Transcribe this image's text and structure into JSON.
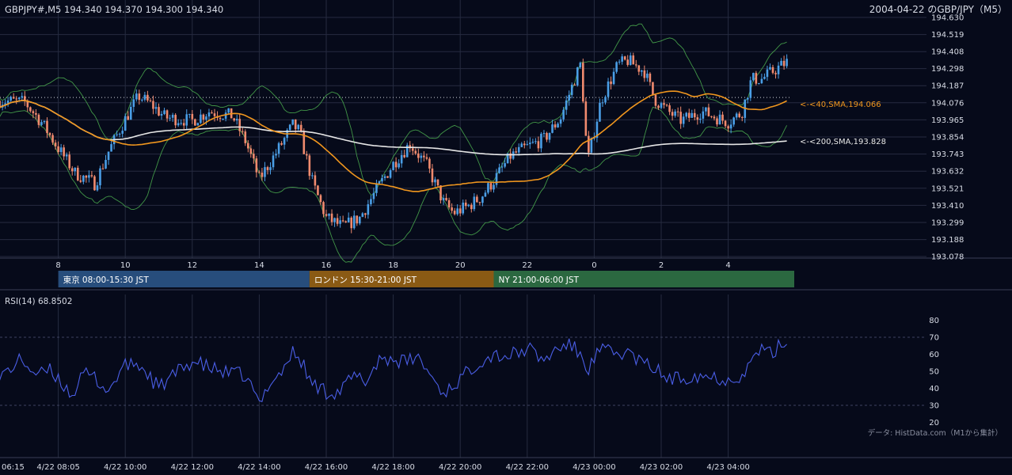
{
  "header": {
    "symbol_line": "GBPJPY#,M5 194.340 194.370 194.300 194.340",
    "title": "2004-04-22 のGBP/JPY（M5）"
  },
  "colors": {
    "background": "#060a1a",
    "grid": "#262b40",
    "candle_up": "#4a9ee6",
    "candle_down": "#f08a6e",
    "sma40": "#f0961e",
    "sma200": "#e6e6e6",
    "bollinger": "#4caf50",
    "rsi": "#4a5ee6",
    "session_tokyo": "#274d7c",
    "session_london": "#8a5a14",
    "session_ny": "#2b6840"
  },
  "sessions": [
    {
      "label": "東京 08:00-15:30 JST",
      "color": "#274d7c"
    },
    {
      "label": "ロンドン 15:30-21:00 JST",
      "color": "#8a5a14"
    },
    {
      "label": "NY 21:00-06:00 JST",
      "color": "#2b6840"
    }
  ],
  "rsi_label": "RSI(14) 68.8502",
  "footer_note": "データ: HistData.com（M1から集計）",
  "chart_data": [
    {
      "type": "candlestick",
      "title": "2004-04-22 のGBP/JPY（M5）",
      "ylim": [
        193.078,
        194.63
      ],
      "y_ticks": [
        "194.630",
        "194.519",
        "194.408",
        "194.298",
        "194.187",
        "194.076",
        "193.965",
        "193.854",
        "193.743",
        "193.632",
        "193.521",
        "193.410",
        "193.299",
        "193.188",
        "193.078"
      ],
      "x_ticks_hours": [
        "6",
        "8",
        "10",
        "12",
        "14",
        "16",
        "18",
        "20",
        "22",
        "0",
        "2",
        "4"
      ],
      "dotted_reference_level": 194.11,
      "sma40_label": "<-<40,SMA,194.066",
      "sma200_label": "<-<200,SMA,193.828",
      "close_anchors_hour_value": [
        [
          6.25,
          194.09
        ],
        [
          7.0,
          194.08
        ],
        [
          7.5,
          193.95
        ],
        [
          8.0,
          193.78
        ],
        [
          8.5,
          193.62
        ],
        [
          9.1,
          193.55
        ],
        [
          9.5,
          193.76
        ],
        [
          10.0,
          193.97
        ],
        [
          10.4,
          194.12
        ],
        [
          10.8,
          194.06
        ],
        [
          11.2,
          193.98
        ],
        [
          12.0,
          193.96
        ],
        [
          12.5,
          194.02
        ],
        [
          13.2,
          193.99
        ],
        [
          13.6,
          193.82
        ],
        [
          14.0,
          193.58
        ],
        [
          14.5,
          193.75
        ],
        [
          15.0,
          193.93
        ],
        [
          15.2,
          193.89
        ],
        [
          15.6,
          193.55
        ],
        [
          16.0,
          193.33
        ],
        [
          16.5,
          193.27
        ],
        [
          17.0,
          193.33
        ],
        [
          17.5,
          193.51
        ],
        [
          18.0,
          193.68
        ],
        [
          18.5,
          193.81
        ],
        [
          19.0,
          193.67
        ],
        [
          19.5,
          193.43
        ],
        [
          19.8,
          193.36
        ],
        [
          20.2,
          193.4
        ],
        [
          20.6,
          193.46
        ],
        [
          21.0,
          193.57
        ],
        [
          21.5,
          193.73
        ],
        [
          22.0,
          193.79
        ],
        [
          22.5,
          193.84
        ],
        [
          23.0,
          193.98
        ],
        [
          23.4,
          194.22
        ],
        [
          23.6,
          194.33
        ],
        [
          23.8,
          193.69
        ],
        [
          24.2,
          194.09
        ],
        [
          24.7,
          194.32
        ],
        [
          25.0,
          194.35
        ],
        [
          25.5,
          194.28
        ],
        [
          25.8,
          194.1
        ],
        [
          26.2,
          194.02
        ],
        [
          26.6,
          193.96
        ],
        [
          27.2,
          194.02
        ],
        [
          28.0,
          193.95
        ],
        [
          28.4,
          194.01
        ],
        [
          28.7,
          194.23
        ],
        [
          29.0,
          194.23
        ],
        [
          29.4,
          194.29
        ],
        [
          29.75,
          194.34
        ]
      ]
    },
    {
      "type": "line",
      "title": "RSI(14) 68.8502",
      "ylim": [
        16,
        84
      ],
      "y_ticks": [
        20,
        30,
        40,
        50,
        60,
        70,
        80
      ],
      "dashed_levels": [
        30,
        70
      ],
      "x_tick_labels": [
        "06:15",
        "4/22 08:05",
        "4/22 10:00",
        "4/22 12:00",
        "4/22 14:00",
        "4/22 16:00",
        "4/22 18:00",
        "4/22 20:00",
        "4/22 22:00",
        "4/23 00:00",
        "4/23 02:00",
        "4/23 04:00"
      ],
      "anchors_hour_value": [
        [
          6.0,
          40
        ],
        [
          6.4,
          49
        ],
        [
          6.9,
          57
        ],
        [
          7.4,
          47
        ],
        [
          7.7,
          51
        ],
        [
          8.0,
          46
        ],
        [
          8.4,
          36
        ],
        [
          8.8,
          49
        ],
        [
          9.1,
          46
        ],
        [
          9.5,
          38
        ],
        [
          9.9,
          52
        ],
        [
          10.3,
          55
        ],
        [
          10.6,
          50
        ],
        [
          11.0,
          40
        ],
        [
          11.4,
          47
        ],
        [
          12.0,
          56
        ],
        [
          12.5,
          52
        ],
        [
          13.0,
          49
        ],
        [
          13.5,
          48
        ],
        [
          13.8,
          40
        ],
        [
          14.0,
          30
        ],
        [
          14.3,
          44
        ],
        [
          14.6,
          48
        ],
        [
          15.0,
          61
        ],
        [
          15.3,
          55
        ],
        [
          15.5,
          44
        ],
        [
          16.0,
          38
        ],
        [
          16.4,
          38
        ],
        [
          16.8,
          47
        ],
        [
          17.2,
          44
        ],
        [
          17.6,
          58
        ],
        [
          18.0,
          57
        ],
        [
          18.4,
          55
        ],
        [
          18.7,
          59
        ],
        [
          19.0,
          51
        ],
        [
          19.5,
          37
        ],
        [
          19.8,
          42
        ],
        [
          20.2,
          49
        ],
        [
          20.5,
          55
        ],
        [
          21.0,
          60
        ],
        [
          21.4,
          59
        ],
        [
          21.8,
          61
        ],
        [
          22.0,
          64
        ],
        [
          22.5,
          56
        ],
        [
          22.8,
          62
        ],
        [
          23.2,
          66
        ],
        [
          23.5,
          62
        ],
        [
          23.8,
          51
        ],
        [
          24.2,
          63
        ],
        [
          24.6,
          60
        ],
        [
          25.0,
          61
        ],
        [
          25.5,
          54
        ],
        [
          25.8,
          52
        ],
        [
          26.2,
          45
        ],
        [
          26.6,
          46
        ],
        [
          27.0,
          48
        ],
        [
          27.5,
          47
        ],
        [
          28.0,
          45
        ],
        [
          28.5,
          49
        ],
        [
          28.9,
          63
        ],
        [
          29.3,
          60
        ],
        [
          29.75,
          69
        ]
      ]
    }
  ]
}
